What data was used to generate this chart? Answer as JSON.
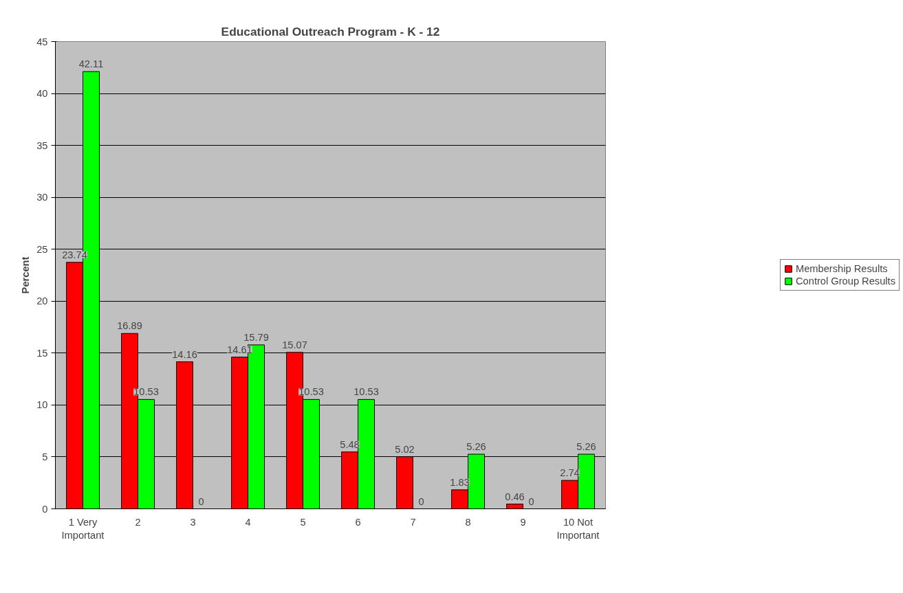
{
  "chart_data": {
    "type": "bar",
    "title": "Educational Outreach Program - K - 12",
    "ylabel": "Percent",
    "categories": [
      "1 Very\nImportant",
      "2",
      "3",
      "4",
      "5",
      "6",
      "7",
      "8",
      "9",
      "10 Not\nImportant"
    ],
    "series": [
      {
        "name": "Membership Results",
        "color": "#ff0000",
        "values": [
          23.74,
          16.89,
          14.16,
          14.61,
          15.07,
          5.48,
          5.02,
          1.83,
          0.46,
          2.74
        ]
      },
      {
        "name": "Control Group Results",
        "color": "#00ff00",
        "values": [
          42.11,
          10.53,
          0,
          15.79,
          10.53,
          10.53,
          0,
          5.26,
          0,
          5.26
        ]
      }
    ],
    "ylim": [
      0,
      45
    ],
    "yticks": [
      0,
      5,
      10,
      15,
      20,
      25,
      30,
      35,
      40,
      45
    ],
    "grid": "y",
    "legend": "right",
    "data_labels": true
  }
}
